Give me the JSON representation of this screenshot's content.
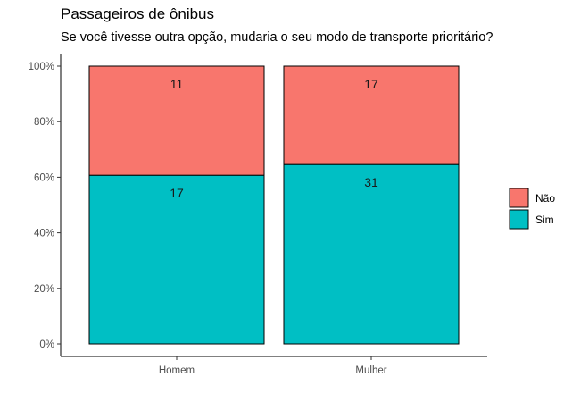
{
  "chart_data": {
    "type": "bar",
    "stacked": true,
    "normalized": true,
    "title": "Passageiros de ônibus",
    "subtitle": "Se você tivesse outra opção, mudaria o seu modo de transporte prioritário?",
    "categories": [
      "Homem",
      "Mulher"
    ],
    "series": [
      {
        "name": "Sim",
        "values": [
          17,
          31
        ],
        "color": "#00BFC4"
      },
      {
        "name": "Não",
        "values": [
          11,
          17
        ],
        "color": "#F8766D"
      }
    ],
    "yticks": [
      "0%",
      "20%",
      "40%",
      "60%",
      "80%",
      "100%"
    ],
    "ylim": [
      0,
      1
    ],
    "legend_position": "right",
    "grid": false
  }
}
